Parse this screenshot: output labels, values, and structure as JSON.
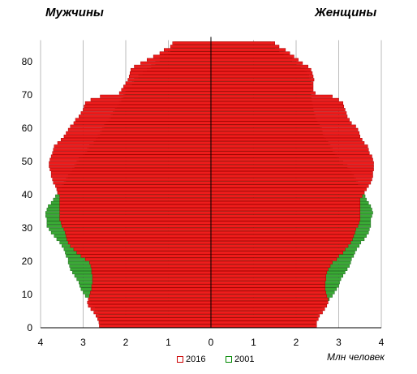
{
  "labels": {
    "men": "Мужчины",
    "women": "Женщины",
    "unit": "Млн человек"
  },
  "legend": [
    {
      "name": "2016",
      "color": "#cc0000"
    },
    {
      "name": "2001",
      "color": "#008800"
    }
  ],
  "colors": {
    "s2016_fill": "#ee1c1c",
    "s2016_stroke": "#aa0000",
    "s2001_fill": "#3aaa35",
    "s2001_stroke": "#1a6a1a",
    "grid": "#bbbbbb",
    "axis": "#000000"
  },
  "chart_data": {
    "type": "bar",
    "orientation": "horizontal-population-pyramid",
    "xlim": [
      -4,
      4
    ],
    "ylim": [
      0,
      85
    ],
    "x_ticks": [
      4,
      3,
      2,
      1,
      0,
      1,
      2,
      3,
      4
    ],
    "y_ticks": [
      0,
      10,
      20,
      30,
      40,
      50,
      60,
      70,
      80
    ],
    "grid": "vertical",
    "ages": [
      0,
      1,
      2,
      3,
      4,
      5,
      6,
      7,
      8,
      9,
      10,
      11,
      12,
      13,
      14,
      15,
      16,
      17,
      18,
      19,
      20,
      21,
      22,
      23,
      24,
      25,
      26,
      27,
      28,
      29,
      30,
      31,
      32,
      33,
      34,
      35,
      36,
      37,
      38,
      39,
      40,
      41,
      42,
      43,
      44,
      45,
      46,
      47,
      48,
      49,
      50,
      51,
      52,
      53,
      54,
      55,
      56,
      57,
      58,
      59,
      60,
      61,
      62,
      63,
      64,
      65,
      66,
      67,
      68,
      69,
      70,
      71,
      72,
      73,
      74,
      75,
      76,
      77,
      78,
      79,
      80,
      81,
      82,
      83,
      84,
      85
    ],
    "series": [
      {
        "name": "2016",
        "men": [
          2.62,
          2.63,
          2.66,
          2.7,
          2.75,
          2.82,
          2.88,
          2.9,
          2.88,
          2.85,
          2.83,
          2.8,
          2.8,
          2.78,
          2.78,
          2.78,
          2.8,
          2.8,
          2.82,
          2.85,
          2.95,
          3.05,
          3.15,
          3.22,
          3.3,
          3.35,
          3.38,
          3.4,
          3.42,
          3.45,
          3.5,
          3.52,
          3.55,
          3.55,
          3.55,
          3.55,
          3.55,
          3.55,
          3.55,
          3.55,
          3.6,
          3.62,
          3.65,
          3.7,
          3.72,
          3.75,
          3.75,
          3.78,
          3.8,
          3.8,
          3.78,
          3.75,
          3.72,
          3.7,
          3.68,
          3.6,
          3.52,
          3.45,
          3.4,
          3.35,
          3.3,
          3.22,
          3.18,
          3.1,
          3.05,
          3.0,
          2.98,
          2.95,
          2.82,
          2.6,
          2.15,
          2.1,
          2.05,
          2.0,
          1.95,
          1.92,
          1.9,
          1.88,
          1.8,
          1.65,
          1.5,
          1.35,
          1.2,
          1.1,
          0.95,
          0.9
        ],
        "women": [
          2.48,
          2.48,
          2.52,
          2.55,
          2.62,
          2.67,
          2.72,
          2.75,
          2.75,
          2.72,
          2.7,
          2.68,
          2.68,
          2.68,
          2.7,
          2.7,
          2.72,
          2.75,
          2.8,
          2.85,
          2.95,
          3.0,
          3.1,
          3.15,
          3.22,
          3.28,
          3.32,
          3.35,
          3.38,
          3.4,
          3.45,
          3.48,
          3.5,
          3.5,
          3.5,
          3.5,
          3.5,
          3.5,
          3.5,
          3.55,
          3.6,
          3.65,
          3.7,
          3.75,
          3.78,
          3.8,
          3.8,
          3.82,
          3.82,
          3.82,
          3.8,
          3.78,
          3.72,
          3.7,
          3.68,
          3.6,
          3.55,
          3.5,
          3.48,
          3.45,
          3.4,
          3.3,
          3.25,
          3.2,
          3.18,
          3.15,
          3.12,
          3.1,
          3.0,
          2.85,
          2.45,
          2.4,
          2.4,
          2.4,
          2.42,
          2.4,
          2.38,
          2.35,
          2.28,
          2.15,
          2.05,
          1.95,
          1.85,
          1.75,
          1.6,
          1.5
        ]
      },
      {
        "name": "2001",
        "men": [
          2.6,
          2.58,
          2.6,
          2.62,
          2.65,
          2.72,
          2.78,
          2.82,
          2.85,
          2.95,
          3.0,
          3.05,
          3.08,
          3.1,
          3.15,
          3.2,
          3.25,
          3.3,
          3.32,
          3.35,
          3.35,
          3.4,
          3.42,
          3.45,
          3.5,
          3.55,
          3.62,
          3.68,
          3.75,
          3.8,
          3.85,
          3.85,
          3.85,
          3.88,
          3.88,
          3.85,
          3.82,
          3.75,
          3.7,
          3.65,
          3.6,
          3.55,
          3.5,
          3.45,
          3.4,
          3.35,
          3.3,
          3.25,
          3.2,
          3.15,
          3.1,
          3.0,
          2.95,
          2.9,
          2.85,
          2.75,
          2.7,
          2.65,
          2.6,
          2.55,
          2.5,
          2.45,
          2.4,
          2.35,
          2.3,
          2.25,
          2.2,
          2.15,
          2.1,
          2.05,
          2.0,
          1.95,
          1.9,
          1.85,
          1.8,
          1.7,
          1.6,
          1.5,
          1.4,
          1.3,
          1.2,
          1.1,
          1.0,
          0.95,
          0.9,
          0.85
        ],
        "women": [
          2.45,
          2.45,
          2.48,
          2.5,
          2.52,
          2.6,
          2.68,
          2.72,
          2.78,
          2.85,
          2.9,
          2.95,
          3.0,
          3.02,
          3.05,
          3.1,
          3.15,
          3.2,
          3.25,
          3.28,
          3.3,
          3.35,
          3.38,
          3.42,
          3.48,
          3.52,
          3.6,
          3.65,
          3.7,
          3.72,
          3.75,
          3.75,
          3.75,
          3.78,
          3.8,
          3.78,
          3.75,
          3.7,
          3.65,
          3.62,
          3.6,
          3.55,
          3.5,
          3.45,
          3.4,
          3.35,
          3.3,
          3.25,
          3.2,
          3.1,
          3.0,
          2.95,
          2.9,
          2.85,
          2.8,
          2.75,
          2.7,
          2.65,
          2.62,
          2.6,
          2.55,
          2.5,
          2.48,
          2.45,
          2.42,
          2.4,
          2.4,
          2.38,
          2.36,
          2.35,
          2.35,
          2.35,
          2.35,
          2.35,
          2.35,
          2.3,
          2.25,
          2.2,
          2.1,
          2.0,
          1.9,
          1.8,
          1.7,
          1.6,
          1.5,
          1.4
        ]
      }
    ]
  }
}
